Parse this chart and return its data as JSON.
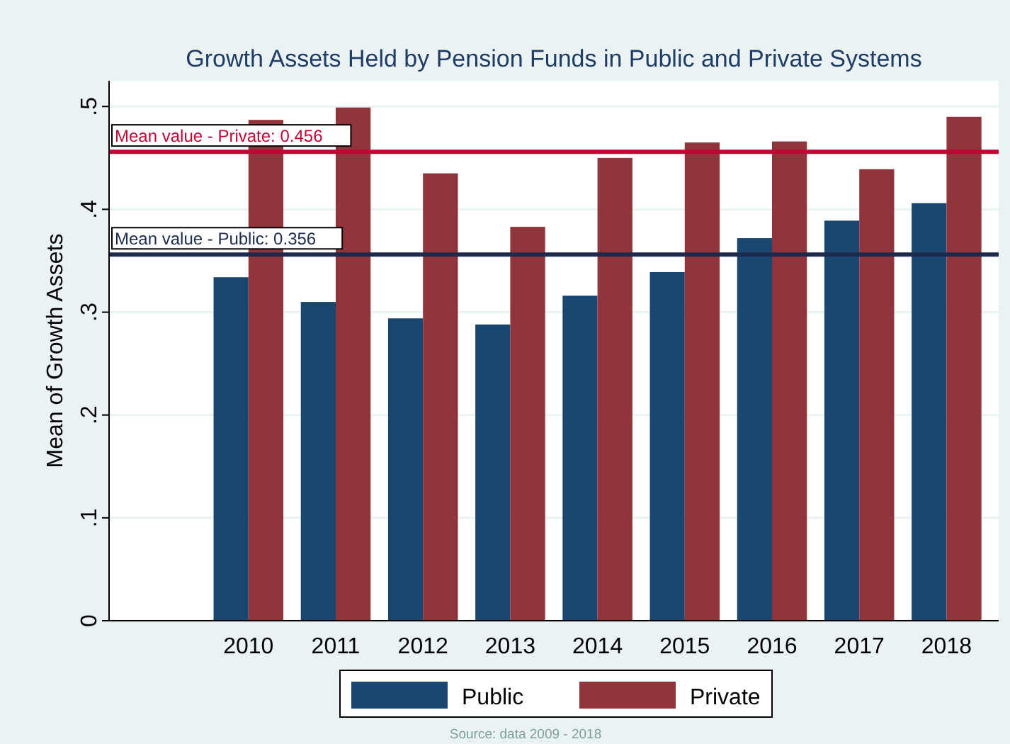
{
  "chart_data": {
    "type": "bar",
    "title": "Growth Assets Held by Pension Funds in Public and Private Systems",
    "ylabel": "Mean of Growth Assets",
    "categories": [
      null,
      "2010",
      "2011",
      "2012",
      "2013",
      "2014",
      "2015",
      "2016",
      "2017",
      "2018"
    ],
    "series": [
      {
        "name": "Public",
        "color": "#1a476f",
        "values": [
          null,
          0.334,
          0.31,
          0.294,
          0.288,
          0.316,
          0.339,
          0.372,
          0.389,
          0.406
        ]
      },
      {
        "name": "Private",
        "color": "#90353b",
        "values": [
          null,
          0.487,
          0.499,
          0.435,
          0.383,
          0.45,
          0.465,
          0.466,
          0.439,
          0.49
        ]
      }
    ],
    "ylim": [
      0,
      0.525
    ],
    "yticks": [
      {
        "value": 0,
        "label": "0"
      },
      {
        "value": 0.1,
        "label": ".1"
      },
      {
        "value": 0.2,
        "label": ".2"
      },
      {
        "value": 0.3,
        "label": ".3"
      },
      {
        "value": 0.4,
        "label": ".4"
      },
      {
        "value": 0.5,
        "label": ".5"
      }
    ],
    "grid": "y",
    "legend": "bottom",
    "ref_lines": [
      {
        "axis": "y",
        "value": 0.456,
        "label": "Mean value - Private: 0.456",
        "color": "#c10534"
      },
      {
        "axis": "y",
        "value": 0.356,
        "label": "Mean value - Public: 0.356",
        "color": "#1c2a4d"
      }
    ],
    "annotations": [
      "Source: data 2009 - 2018"
    ]
  }
}
